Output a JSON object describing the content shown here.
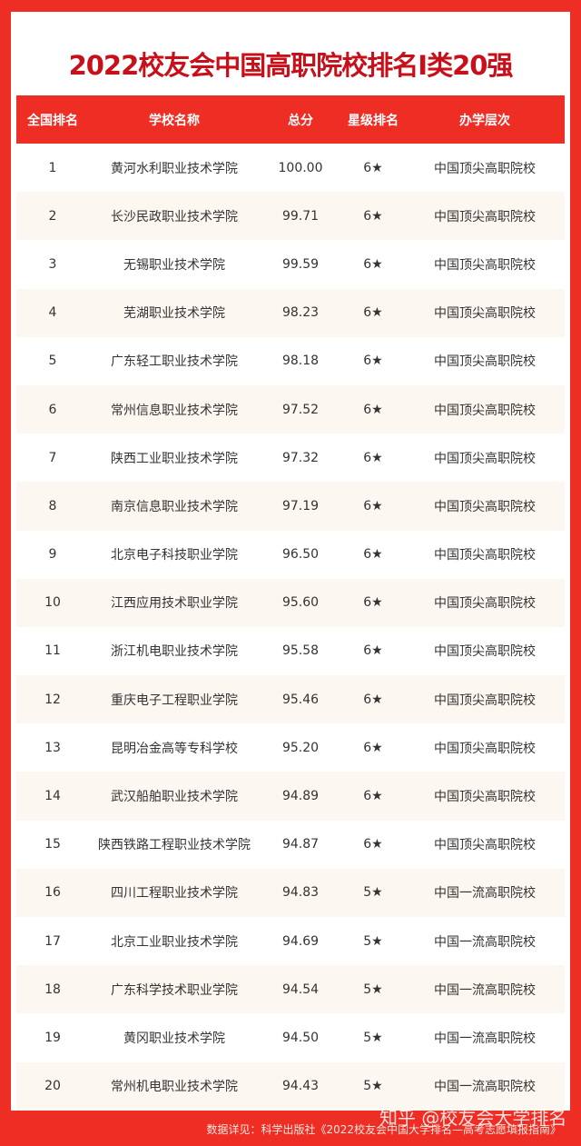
{
  "title": "2022校友会中国高职院校排名I类20强",
  "headers": [
    "全国排名",
    "学校名称",
    "总分",
    "星级排名",
    "办学层次"
  ],
  "rows": [
    [
      "1",
      "黄河水利职业技术学院",
      "100.00",
      "6★",
      "中国顶尖高职院校"
    ],
    [
      "2",
      "长沙民政职业技术学院",
      "99.71",
      "6★",
      "中国顶尖高职院校"
    ],
    [
      "3",
      "无锡职业技术学院",
      "99.59",
      "6★",
      "中国顶尖高职院校"
    ],
    [
      "4",
      "芜湖职业技术学院",
      "98.23",
      "6★",
      "中国顶尖高职院校"
    ],
    [
      "5",
      "广东轻工职业技术学院",
      "98.18",
      "6★",
      "中国顶尖高职院校"
    ],
    [
      "6",
      "常州信息职业技术学院",
      "97.52",
      "6★",
      "中国顶尖高职院校"
    ],
    [
      "7",
      "陕西工业职业技术学院",
      "97.32",
      "6★",
      "中国顶尖高职院校"
    ],
    [
      "8",
      "南京信息职业技术学院",
      "97.19",
      "6★",
      "中国顶尖高职院校"
    ],
    [
      "9",
      "北京电子科技职业学院",
      "96.50",
      "6★",
      "中国顶尖高职院校"
    ],
    [
      "10",
      "江西应用技术职业学院",
      "95.60",
      "6★",
      "中国顶尖高职院校"
    ],
    [
      "11",
      "浙江机电职业技术学院",
      "95.58",
      "6★",
      "中国顶尖高职院校"
    ],
    [
      "12",
      "重庆电子工程职业学院",
      "95.46",
      "6★",
      "中国顶尖高职院校"
    ],
    [
      "13",
      "昆明冶金高等专科学校",
      "95.20",
      "6★",
      "中国顶尖高职院校"
    ],
    [
      "14",
      "武汉船舶职业技术学院",
      "94.89",
      "6★",
      "中国顶尖高职院校"
    ],
    [
      "15",
      "陕西铁路工程职业技术学院",
      "94.87",
      "6★",
      "中国顶尖高职院校"
    ],
    [
      "16",
      "四川工程职业技术学院",
      "94.83",
      "5★",
      "中国一流高职院校"
    ],
    [
      "17",
      "北京工业职业技术学院",
      "94.69",
      "5★",
      "中国一流高职院校"
    ],
    [
      "18",
      "广东科学技术职业学院",
      "94.54",
      "5★",
      "中国一流高职院校"
    ],
    [
      "19",
      "黄冈职业技术学院",
      "94.50",
      "5★",
      "中国一流高职院校"
    ],
    [
      "20",
      "常州机电职业技术学院",
      "94.43",
      "5★",
      "中国一流高职院校"
    ]
  ],
  "footer": "数据详见：科学出版社《2022校友会中国大学排名—高考志愿填报指南》",
  "watermark": "知乎 @校友会大学排名",
  "colors": {
    "accent": "#ee2d24",
    "title": "#c8101a",
    "zebra": "#fcf7f1"
  }
}
